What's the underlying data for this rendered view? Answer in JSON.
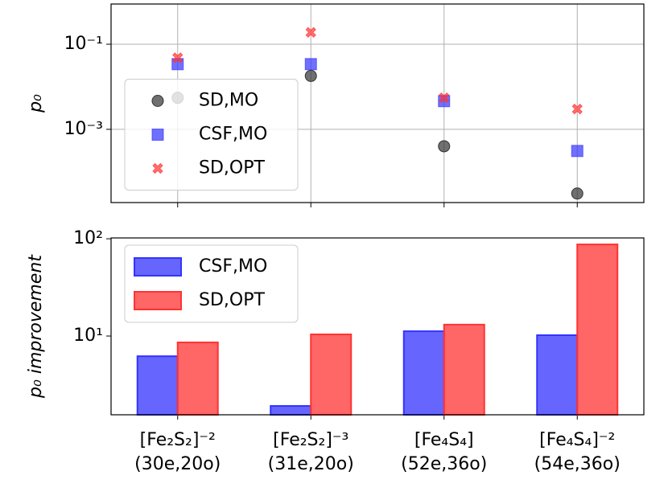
{
  "chart_data": [
    {
      "type": "scatter",
      "ylabel": "p₀",
      "log_y": true,
      "grid": true,
      "legend": "center left",
      "ylim": [
        1.9e-05,
        0.88
      ],
      "yticks": [
        {
          "value": 0.1,
          "label": "10⁻¹"
        },
        {
          "value": 0.001,
          "label": "10⁻³"
        }
      ],
      "series": [
        {
          "name": "SD,MO",
          "color": "#333333",
          "marker": "circle",
          "values": [
            0.0055,
            0.018,
            0.0004,
            3.1e-05
          ]
        },
        {
          "name": "CSF,MO",
          "color": "#3333ff",
          "marker": "square",
          "values": [
            0.034,
            0.034,
            0.0046,
            0.00031
          ]
        },
        {
          "name": "SD,OPT",
          "color": "#ff3333",
          "marker": "x",
          "values": [
            0.048,
            0.19,
            0.0055,
            0.003
          ]
        }
      ]
    },
    {
      "type": "bar",
      "ylabel": "p₀ improvement",
      "log_y": true,
      "grid": false,
      "legend": "upper left",
      "categories": [
        [
          "[Fe₂S₂]⁻²",
          "(30e,20o)"
        ],
        [
          "[Fe₂S₂]⁻³",
          "(31e,20o)"
        ],
        [
          "[Fe₄S₄]",
          "(52e,36o)"
        ],
        [
          "[Fe₄S₄]⁻²",
          "(54e,36o)"
        ]
      ],
      "ylim": [
        1.55,
        102
      ],
      "yticks": [
        {
          "value": 10,
          "label": "10¹"
        },
        {
          "value": 100,
          "label": "10²"
        }
      ],
      "series": [
        {
          "name": "CSF,MO",
          "color": "#3333ff",
          "values": [
            6.2,
            1.91,
            11.2,
            10.2
          ]
        },
        {
          "name": "SD,OPT",
          "color": "#ff3333",
          "values": [
            8.6,
            10.4,
            13.1,
            87.5
          ]
        }
      ]
    }
  ]
}
